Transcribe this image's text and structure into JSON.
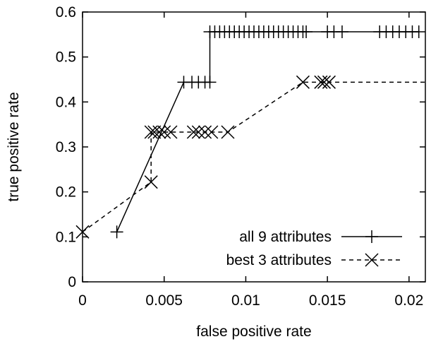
{
  "chart_data": {
    "type": "line",
    "title": "",
    "xlabel": "false positive rate",
    "ylabel": "true positive rate",
    "xlim": [
      0,
      0.021
    ],
    "ylim": [
      0,
      0.6
    ],
    "x_ticks": [
      0,
      0.005,
      0.01,
      0.015,
      0.02
    ],
    "x_tick_labels": [
      "0",
      "0.005",
      "0.01",
      "0.015",
      "0.02"
    ],
    "y_ticks": [
      0,
      0.1,
      0.2,
      0.3,
      0.4,
      0.5,
      0.6
    ],
    "y_tick_labels": [
      "0",
      "0.1",
      "0.2",
      "0.3",
      "0.4",
      "0.5",
      "0.6"
    ],
    "grid": false,
    "legend_position": "bottom-right",
    "series": [
      {
        "name": "all 9 attributes",
        "line_style": "solid",
        "marker": "plus",
        "color": "#000000",
        "x": [
          0.0021,
          0.0062,
          0.0067,
          0.0071,
          0.0075,
          0.0078,
          0.0078,
          0.0081,
          0.0084,
          0.0087,
          0.009,
          0.0093,
          0.0096,
          0.0099,
          0.0102,
          0.0105,
          0.0108,
          0.0111,
          0.0114,
          0.0117,
          0.012,
          0.0123,
          0.0126,
          0.0129,
          0.0132,
          0.0135,
          0.0137,
          0.015,
          0.0154,
          0.0159,
          0.0182,
          0.0186,
          0.019,
          0.0194,
          0.0198,
          0.0202,
          0.0206
        ],
        "y": [
          0.111,
          0.444,
          0.444,
          0.444,
          0.444,
          0.444,
          0.556,
          0.556,
          0.556,
          0.556,
          0.556,
          0.556,
          0.556,
          0.556,
          0.556,
          0.556,
          0.556,
          0.556,
          0.556,
          0.556,
          0.556,
          0.556,
          0.556,
          0.556,
          0.556,
          0.556,
          0.556,
          0.556,
          0.556,
          0.556,
          0.556,
          0.556,
          0.556,
          0.556,
          0.556,
          0.556,
          0.556
        ]
      },
      {
        "name": "best 3 attributes",
        "line_style": "dashed",
        "marker": "x",
        "color": "#000000",
        "x": [
          0,
          0.0042,
          0.0042,
          0.0044,
          0.0047,
          0.005,
          0.0054,
          0.0068,
          0.0071,
          0.0075,
          0.0079,
          0.0089,
          0.0135,
          0.0146,
          0.0148,
          0.0151,
          0.021
        ],
        "y": [
          0.111,
          0.222,
          0.333,
          0.333,
          0.333,
          0.333,
          0.333,
          0.333,
          0.333,
          0.333,
          0.333,
          0.333,
          0.444,
          0.444,
          0.444,
          0.444,
          0.444
        ]
      }
    ]
  }
}
